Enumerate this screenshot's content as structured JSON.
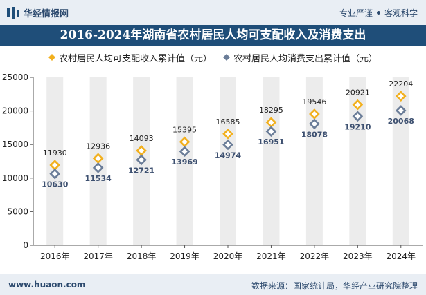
{
  "header": {
    "brand": "华经情报网",
    "slogan_left": "专业严谨",
    "slogan_right": "客观科学"
  },
  "footer": {
    "site": "www.huaon.com",
    "source": "数据来源：国家统计局，华经产业研究院整理"
  },
  "colors": {
    "series1": "#f2b01e",
    "series2": "#6b7d98",
    "title_bg": "#1f4e79",
    "band": "#ececec"
  },
  "chart_data": {
    "type": "scatter",
    "title": "2016-2024年湖南省农村居民人均可支配收入及消费支出",
    "categories": [
      "2016年",
      "2017年",
      "2018年",
      "2019年",
      "2020年",
      "2021年",
      "2022年",
      "2023年",
      "2024年"
    ],
    "ylim": [
      0,
      25000
    ],
    "yticks": [
      0,
      5000,
      10000,
      15000,
      20000,
      25000
    ],
    "grid": false,
    "legend_position": "top",
    "series": [
      {
        "name": "农村居民人均可支配收入累计值（元）",
        "marker": "diamond",
        "values": [
          11930,
          12936,
          14093,
          15395,
          16585,
          18295,
          19546,
          20921,
          22204
        ]
      },
      {
        "name": "农村居民人均消费支出累计值（元）",
        "marker": "diamond",
        "values": [
          10630,
          11534,
          12721,
          13969,
          14974,
          16951,
          18078,
          19210,
          20068
        ]
      }
    ]
  }
}
